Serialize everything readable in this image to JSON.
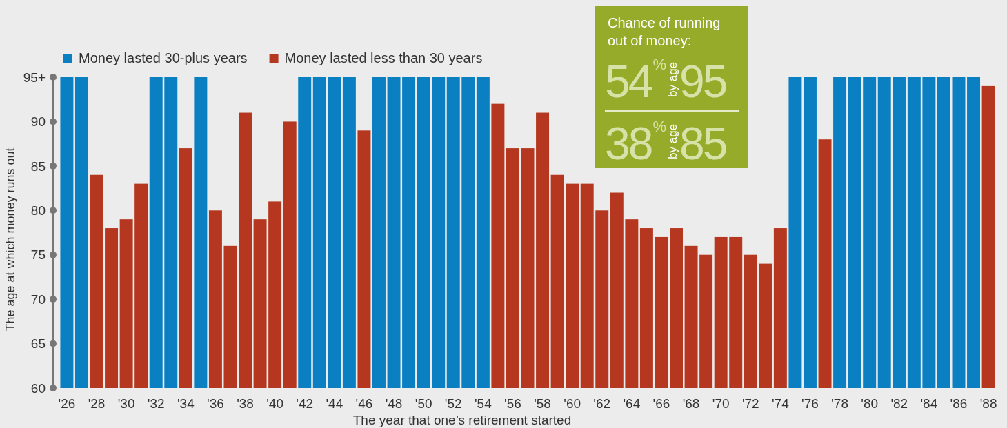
{
  "chart_data": {
    "type": "bar",
    "xlabel": "The year that one’s retirement started",
    "ylabel": "The age at which money runs out",
    "categories": [
      "'26",
      null,
      "'28",
      null,
      "'30",
      null,
      "'32",
      null,
      "'34",
      null,
      "'36",
      null,
      "'38",
      null,
      "'40",
      null,
      "'42",
      null,
      "'44",
      null,
      "'46",
      null,
      "'48",
      null,
      "'50",
      null,
      "'52",
      null,
      "'54",
      null,
      "'56",
      null,
      "'58",
      null,
      "'60",
      null,
      "'62",
      null,
      "'64",
      null,
      "'66",
      null,
      "'68",
      null,
      "'70",
      null,
      "'72",
      null,
      "'74",
      null,
      "'76",
      null,
      "'78",
      null,
      "'80",
      null,
      "'82",
      null,
      "'84",
      null,
      "'86",
      null,
      "'88"
    ],
    "series": [
      {
        "name": "Money lasted 30-plus years",
        "color": "#0a7fc2",
        "values": [
          95,
          95,
          null,
          null,
          null,
          null,
          95,
          95,
          null,
          95,
          null,
          null,
          null,
          null,
          null,
          null,
          95,
          95,
          95,
          95,
          null,
          95,
          95,
          95,
          95,
          95,
          95,
          95,
          95,
          null,
          null,
          null,
          null,
          null,
          null,
          null,
          null,
          null,
          null,
          null,
          null,
          null,
          null,
          null,
          null,
          null,
          null,
          null,
          null,
          95,
          95,
          null,
          95,
          95,
          95,
          95,
          95,
          95,
          95,
          95,
          95,
          95,
          null
        ]
      },
      {
        "name": "Money lasted less than 30 years",
        "color": "#b5371f",
        "values": [
          null,
          null,
          84,
          78,
          79,
          83,
          null,
          null,
          87,
          null,
          80,
          76,
          91,
          79,
          81,
          90,
          null,
          null,
          null,
          null,
          89,
          null,
          null,
          null,
          null,
          null,
          null,
          null,
          null,
          92,
          87,
          87,
          91,
          84,
          83,
          83,
          80,
          82,
          79,
          78,
          77,
          78,
          76,
          75,
          77,
          77,
          75,
          74,
          78,
          null,
          null,
          88,
          null,
          null,
          null,
          null,
          null,
          null,
          null,
          null,
          null,
          null,
          94
        ]
      }
    ],
    "ylim": [
      60,
      95
    ],
    "yticks": [
      60,
      65,
      70,
      75,
      80,
      85,
      90,
      {
        "value": 95,
        "label": "95+"
      }
    ],
    "grid": false,
    "legend": "top left",
    "annotations": [
      "Chance of running out of money:",
      "54%",
      "by age 95",
      "38%",
      "by age 85"
    ]
  }
}
